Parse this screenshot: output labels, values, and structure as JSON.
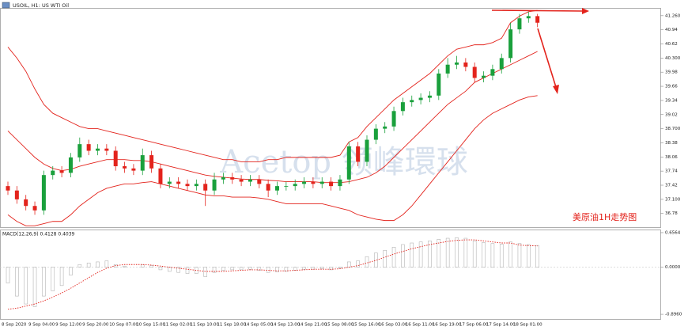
{
  "chart_data": [
    {
      "type": "candlestick",
      "title": "USOIL, H1: US WTI Oil",
      "annotation": "美原油1H走势图",
      "watermark": "Acetop 领峰環球",
      "categories": [
        "8 Sep 2020",
        null,
        null,
        "9 Sep 04:00",
        null,
        null,
        "9 Sep 12:00",
        null,
        null,
        "9 Sep 20:00",
        null,
        null,
        "10 Sep 07:00",
        null,
        null,
        "10 Sep 15:00",
        null,
        null,
        "11 Sep 02:00",
        null,
        null,
        "11 Sep 10:00",
        null,
        null,
        "11 Sep 18:00",
        null,
        null,
        "14 Sep 05:00",
        null,
        null,
        "14 Sep 13:00",
        null,
        null,
        "14 Sep 21:00",
        null,
        null,
        "15 Sep 08:00",
        null,
        null,
        "15 Sep 16:00",
        null,
        null,
        "16 Sep 03:00",
        null,
        null,
        "16 Sep 11:00",
        null,
        null,
        "16 Sep 19:00",
        null,
        null,
        "17 Sep 06:00",
        null,
        null,
        "17 Sep 14:00",
        null,
        null,
        "18 Sep 01:00",
        null,
        null
      ],
      "open": [
        37.4,
        37.3,
        37.1,
        36.95,
        36.85,
        37.65,
        37.75,
        37.7,
        38.05,
        38.35,
        38.2,
        38.25,
        38.2,
        37.85,
        37.8,
        37.75,
        38.1,
        37.8,
        37.45,
        37.5,
        37.45,
        37.4,
        37.45,
        37.3,
        37.55,
        37.6,
        37.55,
        37.5,
        37.55,
        37.45,
        37.3,
        37.4,
        37.4,
        37.45,
        37.5,
        37.45,
        37.5,
        37.4,
        37.55,
        38.3,
        37.95,
        38.45,
        38.7,
        38.75,
        39.1,
        39.3,
        39.35,
        39.4,
        39.45,
        39.95,
        40.15,
        40.2,
        40.1,
        39.85,
        39.9,
        40.05,
        40.3,
        40.95,
        41.2,
        41.25
      ],
      "high": [
        37.5,
        37.4,
        37.2,
        37.05,
        37.75,
        37.85,
        37.85,
        38.15,
        38.5,
        38.45,
        38.35,
        38.35,
        38.3,
        37.95,
        37.9,
        38.25,
        38.2,
        37.9,
        37.6,
        37.6,
        37.55,
        37.55,
        37.55,
        37.7,
        37.7,
        37.7,
        37.65,
        37.65,
        37.65,
        37.55,
        37.5,
        37.5,
        37.55,
        37.6,
        37.6,
        37.6,
        37.6,
        37.65,
        38.4,
        38.4,
        38.55,
        38.8,
        38.85,
        39.2,
        39.4,
        39.45,
        39.5,
        39.55,
        40.05,
        40.3,
        40.35,
        40.3,
        40.2,
        40.0,
        40.15,
        40.4,
        41.1,
        41.3,
        41.35,
        41.3
      ],
      "low": [
        37.2,
        37.0,
        36.85,
        36.75,
        36.75,
        37.55,
        37.6,
        37.6,
        37.95,
        38.1,
        38.1,
        38.1,
        37.75,
        37.7,
        37.65,
        37.65,
        37.7,
        37.35,
        37.35,
        37.35,
        37.3,
        37.3,
        36.95,
        37.2,
        37.45,
        37.45,
        37.4,
        37.4,
        37.35,
        37.15,
        37.2,
        37.3,
        37.3,
        37.35,
        37.35,
        37.35,
        37.3,
        37.3,
        37.45,
        37.85,
        37.85,
        38.35,
        38.6,
        38.65,
        39.0,
        39.2,
        39.25,
        39.3,
        39.35,
        39.85,
        40.05,
        40.0,
        39.75,
        39.75,
        39.8,
        39.95,
        40.2,
        40.85,
        41.1,
        41.0
      ],
      "close": [
        37.3,
        37.1,
        36.95,
        36.85,
        37.65,
        37.75,
        37.7,
        38.05,
        38.35,
        38.2,
        38.25,
        38.2,
        37.85,
        37.8,
        37.75,
        38.1,
        37.8,
        37.45,
        37.5,
        37.45,
        37.4,
        37.45,
        37.3,
        37.55,
        37.6,
        37.55,
        37.5,
        37.55,
        37.45,
        37.3,
        37.4,
        37.4,
        37.45,
        37.5,
        37.45,
        37.5,
        37.4,
        37.55,
        38.3,
        37.95,
        38.45,
        38.7,
        38.75,
        39.1,
        39.3,
        39.35,
        39.4,
        39.45,
        39.95,
        40.15,
        40.2,
        40.1,
        39.85,
        39.9,
        40.05,
        40.3,
        40.95,
        41.2,
        41.25,
        41.1
      ],
      "up_color": "#1aa03c",
      "down_color": "#e3231c",
      "series": [
        {
          "color": "#e3231c",
          "values": [
            40.55,
            40.3,
            40.0,
            39.6,
            39.25,
            39.05,
            38.95,
            38.85,
            38.75,
            38.7,
            38.7,
            38.65,
            38.6,
            38.55,
            38.5,
            38.45,
            38.4,
            38.35,
            38.3,
            38.25,
            38.2,
            38.15,
            38.1,
            38.05,
            38.0,
            38.0,
            37.95,
            37.95,
            37.95,
            38.0,
            38.0,
            38.05,
            38.05,
            38.05,
            38.05,
            38.05,
            38.05,
            38.1,
            38.4,
            38.5,
            38.75,
            38.95,
            39.15,
            39.35,
            39.5,
            39.65,
            39.8,
            39.95,
            40.15,
            40.35,
            40.5,
            40.55,
            40.6,
            40.6,
            40.65,
            40.75,
            41.1,
            41.25,
            41.35,
            41.38
          ]
        },
        {
          "color": "#e3231c",
          "values": [
            38.65,
            38.45,
            38.25,
            38.05,
            37.9,
            37.8,
            37.75,
            37.78,
            37.85,
            37.9,
            37.95,
            38.0,
            38.0,
            38.0,
            37.98,
            37.98,
            37.95,
            37.9,
            37.85,
            37.8,
            37.75,
            37.7,
            37.65,
            37.62,
            37.6,
            37.58,
            37.56,
            37.55,
            37.55,
            37.53,
            37.52,
            37.5,
            37.5,
            37.5,
            37.5,
            37.48,
            37.48,
            37.48,
            37.5,
            37.55,
            37.6,
            37.7,
            37.85,
            38.05,
            38.25,
            38.45,
            38.65,
            38.85,
            39.05,
            39.25,
            39.4,
            39.55,
            39.75,
            39.85,
            39.95,
            40.05,
            40.15,
            40.25,
            40.35,
            40.45
          ]
        },
        {
          "color": "#e3231c",
          "values": [
            36.75,
            36.6,
            36.5,
            36.5,
            36.55,
            36.6,
            36.6,
            36.75,
            36.95,
            37.1,
            37.25,
            37.35,
            37.4,
            37.45,
            37.45,
            37.48,
            37.5,
            37.45,
            37.4,
            37.35,
            37.3,
            37.25,
            37.2,
            37.18,
            37.18,
            37.15,
            37.15,
            37.15,
            37.13,
            37.1,
            37.05,
            37.0,
            37.0,
            37.0,
            37.0,
            37.0,
            36.95,
            36.9,
            36.85,
            36.75,
            36.7,
            36.65,
            36.62,
            36.62,
            36.75,
            36.95,
            37.2,
            37.45,
            37.7,
            37.95,
            38.2,
            38.45,
            38.7,
            38.9,
            39.05,
            39.15,
            39.25,
            39.35,
            39.42,
            39.45
          ]
        }
      ],
      "ylim": [
        36.47,
        41.4
      ],
      "yticks": [
        {
          "value": 41.26,
          "label": "41.260"
        },
        40.94,
        40.62,
        {
          "value": 40.3,
          "label": "40.300"
        },
        39.98,
        39.66,
        39.34,
        39.02,
        {
          "value": 38.7,
          "label": "38.700"
        },
        38.38,
        38.06,
        37.74,
        37.42,
        {
          "value": 37.1,
          "label": "37.100"
        },
        36.78
      ],
      "grid": false
    },
    {
      "type": "macd",
      "title": "MACD(12,26,9) 0.4128 0.4039",
      "values": [
        -0.3,
        -0.55,
        -0.7,
        -0.75,
        -0.55,
        -0.45,
        -0.35,
        -0.15,
        0.05,
        0.08,
        0.1,
        0.12,
        0.05,
        0.02,
        0.0,
        0.05,
        0.03,
        -0.05,
        -0.08,
        -0.1,
        -0.12,
        -0.12,
        -0.18,
        -0.1,
        -0.06,
        -0.05,
        -0.05,
        -0.04,
        -0.06,
        -0.1,
        -0.09,
        -0.08,
        -0.06,
        -0.04,
        -0.04,
        -0.03,
        -0.05,
        -0.02,
        0.1,
        0.12,
        0.2,
        0.27,
        0.32,
        0.38,
        0.43,
        0.46,
        0.48,
        0.5,
        0.53,
        0.55,
        0.56,
        0.55,
        0.5,
        0.47,
        0.45,
        0.44,
        0.48,
        0.45,
        0.43,
        0.4128
      ],
      "color": "#b4b4b4",
      "series": [
        {
          "color": "#e3231c",
          "values": [
            -0.8,
            -0.78,
            -0.74,
            -0.7,
            -0.64,
            -0.57,
            -0.49,
            -0.4,
            -0.3,
            -0.2,
            -0.1,
            -0.02,
            0.03,
            0.05,
            0.05,
            0.05,
            0.04,
            0.02,
            0.0,
            -0.02,
            -0.04,
            -0.06,
            -0.08,
            -0.08,
            -0.08,
            -0.07,
            -0.06,
            -0.05,
            -0.05,
            -0.06,
            -0.07,
            -0.07,
            -0.06,
            -0.05,
            -0.04,
            -0.04,
            -0.04,
            -0.03,
            0.0,
            0.03,
            0.08,
            0.13,
            0.19,
            0.25,
            0.3,
            0.35,
            0.39,
            0.43,
            0.46,
            0.49,
            0.51,
            0.52,
            0.52,
            0.5,
            0.48,
            0.46,
            0.46,
            0.42,
            0.41,
            0.4039
          ]
        }
      ],
      "ylim": [
        -0.985,
        0.701
      ],
      "yticks": [
        0.6564,
        {
          "value": 0,
          "label": "0.0000"
        },
        {
          "value": -0.896,
          "label": "-0.8960"
        }
      ],
      "grid": false
    }
  ]
}
